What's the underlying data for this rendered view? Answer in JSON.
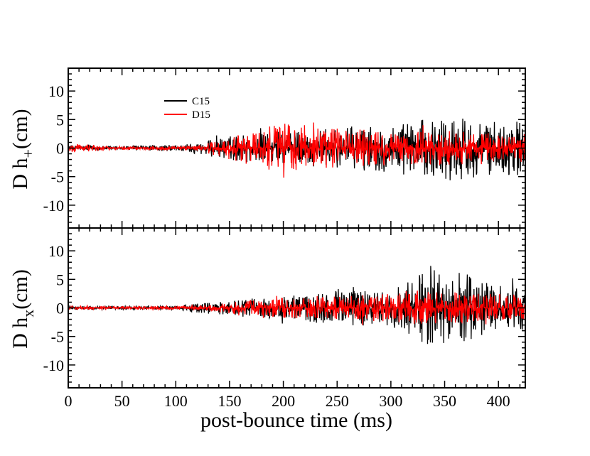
{
  "chart_data": [
    {
      "type": "line",
      "panel": "top",
      "ylabel_main": "D h",
      "ylabel_sub": "+",
      "ylabel_unit": "(cm)",
      "xlim": [
        0,
        425
      ],
      "ylim": [
        -14,
        14
      ],
      "yticks": [
        10,
        5,
        0,
        -5,
        -10
      ],
      "legend": [
        {
          "name": "C15",
          "color": "#000000"
        },
        {
          "name": "D15",
          "color": "#ff0000"
        }
      ],
      "series": [
        {
          "name": "C15",
          "color": "#000000",
          "envelope_time_ms": [
            0,
            50,
            100,
            120,
            140,
            160,
            200,
            250,
            300,
            320,
            340,
            360,
            380,
            400,
            425
          ],
          "envelope_amplitude_cm": [
            0.5,
            0.3,
            0.6,
            1.0,
            1.8,
            2.5,
            3.0,
            3.5,
            4.5,
            5.0,
            5.0,
            6.0,
            5.0,
            4.5,
            5.0
          ]
        },
        {
          "name": "D15",
          "color": "#ff0000",
          "envelope_time_ms": [
            0,
            50,
            100,
            120,
            140,
            160,
            200,
            250,
            300,
            320,
            340,
            360,
            380,
            400,
            425
          ],
          "envelope_amplitude_cm": [
            0.8,
            0.3,
            0.3,
            0.4,
            1.5,
            2.5,
            4.5,
            3.5,
            3.0,
            3.0,
            3.0,
            3.0,
            3.0,
            2.5,
            2.5
          ]
        }
      ]
    },
    {
      "type": "line",
      "panel": "bottom",
      "ylabel_main": "D h",
      "ylabel_sub": "x",
      "ylabel_unit": "(cm)",
      "xlim": [
        0,
        425
      ],
      "ylim": [
        -14,
        14
      ],
      "yticks": [
        10,
        5,
        0,
        -5,
        -10
      ],
      "xticks": [
        0,
        50,
        100,
        150,
        200,
        250,
        300,
        350,
        400
      ],
      "xlabel": "post-bounce time (ms)",
      "series": [
        {
          "name": "C15",
          "color": "#000000",
          "envelope_time_ms": [
            0,
            50,
            100,
            125,
            150,
            200,
            250,
            300,
            320,
            335,
            350,
            365,
            380,
            400,
            425
          ],
          "envelope_amplitude_cm": [
            0.3,
            0.3,
            0.3,
            1.0,
            1.2,
            2.0,
            3.0,
            3.5,
            5.0,
            8.0,
            5.0,
            7.0,
            5.0,
            4.0,
            4.0
          ]
        },
        {
          "name": "D15",
          "color": "#ff0000",
          "envelope_time_ms": [
            0,
            50,
            100,
            125,
            150,
            200,
            250,
            300,
            320,
            335,
            350,
            365,
            380,
            400,
            425
          ],
          "envelope_amplitude_cm": [
            0.3,
            0.3,
            0.3,
            0.5,
            1.0,
            1.8,
            2.0,
            2.5,
            3.0,
            3.0,
            2.5,
            3.0,
            2.5,
            2.5,
            2.5
          ]
        }
      ]
    }
  ]
}
